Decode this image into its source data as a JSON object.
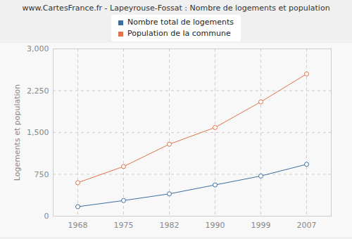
{
  "chart_data": {
    "type": "line",
    "title": "www.CartesFrance.fr - Lapeyrouse-Fossat : Nombre de logements et population",
    "y_label": "Logements et population",
    "categories": [
      "1968",
      "1975",
      "1982",
      "1990",
      "1999",
      "2007"
    ],
    "series": [
      {
        "name": "Nombre total de logements",
        "color": "#3e6f9c",
        "values": [
          170,
          280,
          400,
          560,
          720,
          930
        ]
      },
      {
        "name": "Population de la commune",
        "color": "#e0744a",
        "values": [
          600,
          890,
          1290,
          1590,
          2050,
          2550
        ]
      }
    ],
    "ylim": [
      0,
      3000
    ],
    "yticks": [
      0,
      750,
      1500,
      2250,
      3000
    ],
    "grid": true,
    "legend": "top",
    "marker": "circle"
  }
}
